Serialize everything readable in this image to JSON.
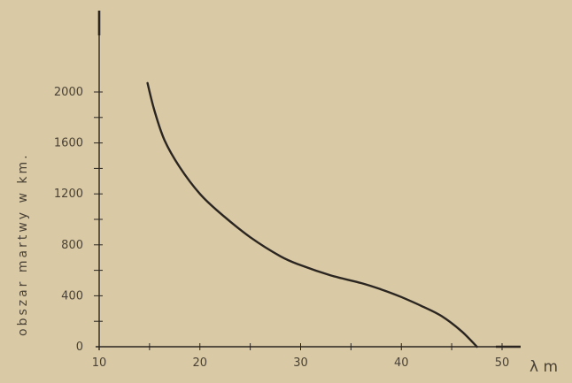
{
  "chart_data": {
    "type": "line",
    "title": "",
    "xlabel": "λ m",
    "ylabel": "obszar martwy w km.",
    "xlim": [
      10,
      52
    ],
    "ylim": [
      0,
      2100
    ],
    "x_ticks": [
      10,
      20,
      30,
      40,
      50
    ],
    "x_tick_labels": [
      "10",
      "20",
      "30",
      "40",
      "50"
    ],
    "y_ticks": [
      0,
      400,
      800,
      1200,
      1600,
      2000
    ],
    "y_tick_labels": [
      "0",
      "400",
      "800",
      "1200",
      "1600",
      "2000"
    ],
    "grid": false,
    "series": [
      {
        "x": [
          14.8,
          15.5,
          16.5,
          18,
          20,
          22,
          25,
          28,
          30,
          33,
          36,
          38,
          40,
          42,
          44,
          46,
          47.5
        ],
        "y": [
          2070,
          1850,
          1620,
          1410,
          1200,
          1050,
          860,
          710,
          640,
          560,
          500,
          450,
          390,
          320,
          240,
          120,
          0
        ]
      }
    ],
    "colors": {
      "background": "#d9c9a4",
      "ink": "#2a2520",
      "text": "#4a4237"
    }
  }
}
